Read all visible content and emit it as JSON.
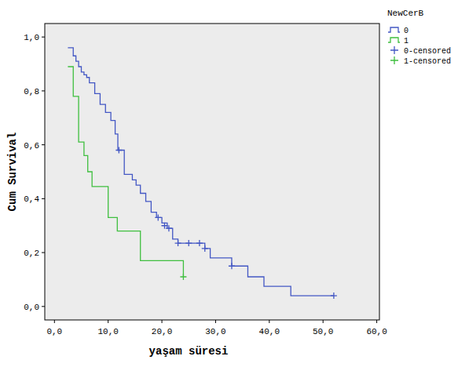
{
  "chart_data": {
    "type": "line",
    "legend_title": "NewCerB",
    "x_label": "yaşam süresi",
    "y_label": "Cum Survival",
    "xlim": [
      -1.8,
      60.5
    ],
    "ylim": [
      -0.05,
      1.05
    ],
    "xticks": [
      {
        "value": 0,
        "label": "0,0"
      },
      {
        "value": 10,
        "label": "10,0"
      },
      {
        "value": 20,
        "label": "20,0"
      },
      {
        "value": 30,
        "label": "30,0"
      },
      {
        "value": 40,
        "label": "40,0"
      },
      {
        "value": 50,
        "label": "50,0"
      },
      {
        "value": 60,
        "label": "60,0"
      }
    ],
    "yticks": [
      {
        "value": 0,
        "label": "0,0"
      },
      {
        "value": 0.2,
        "label": "0,2"
      },
      {
        "value": 0.4,
        "label": "0,4"
      },
      {
        "value": 0.6,
        "label": "0,6"
      },
      {
        "value": 0.8,
        "label": "0,8"
      },
      {
        "value": 1,
        "label": "1,0"
      }
    ],
    "grid": false,
    "legend": "outside-right",
    "series": [
      {
        "name": "0",
        "type": "step",
        "color": "#4357c4",
        "x": [
          2.5,
          3.5,
          4.0,
          4.5,
          5.0,
          5.5,
          6.0,
          6.5,
          7.5,
          8.5,
          9.5,
          10.5,
          11.3,
          11.8,
          13,
          14.5,
          15.2,
          16,
          17,
          18,
          19,
          20,
          21,
          22,
          23,
          28,
          29,
          33,
          36,
          39,
          44,
          52
        ],
        "values": [
          0.96,
          0.93,
          0.91,
          0.89,
          0.87,
          0.86,
          0.85,
          0.83,
          0.79,
          0.75,
          0.72,
          0.69,
          0.64,
          0.58,
          0.49,
          0.47,
          0.45,
          0.42,
          0.39,
          0.35,
          0.33,
          0.31,
          0.29,
          0.25,
          0.235,
          0.215,
          0.18,
          0.15,
          0.11,
          0.075,
          0.04,
          0.04
        ]
      },
      {
        "name": "1",
        "type": "step",
        "color": "#3fbf3f",
        "x": [
          2.5,
          3.5,
          4.5,
          5.5,
          6.2,
          7,
          10,
          11.7,
          16,
          24
        ],
        "values": [
          0.89,
          0.78,
          0.61,
          0.56,
          0.5,
          0.445,
          0.33,
          0.28,
          0.17,
          0.11
        ]
      },
      {
        "name": "0-censored",
        "type": "scatter",
        "marker": "plus",
        "color": "#4357c4",
        "x": [
          12,
          19.3,
          20.5,
          21.3,
          23,
          25,
          27,
          28,
          33,
          52
        ],
        "values": [
          0.58,
          0.33,
          0.3,
          0.29,
          0.235,
          0.235,
          0.235,
          0.215,
          0.15,
          0.04
        ]
      },
      {
        "name": "1-censored",
        "type": "scatter",
        "marker": "plus",
        "color": "#3fbf3f",
        "x": [
          24
        ],
        "values": [
          0.11
        ]
      }
    ]
  }
}
